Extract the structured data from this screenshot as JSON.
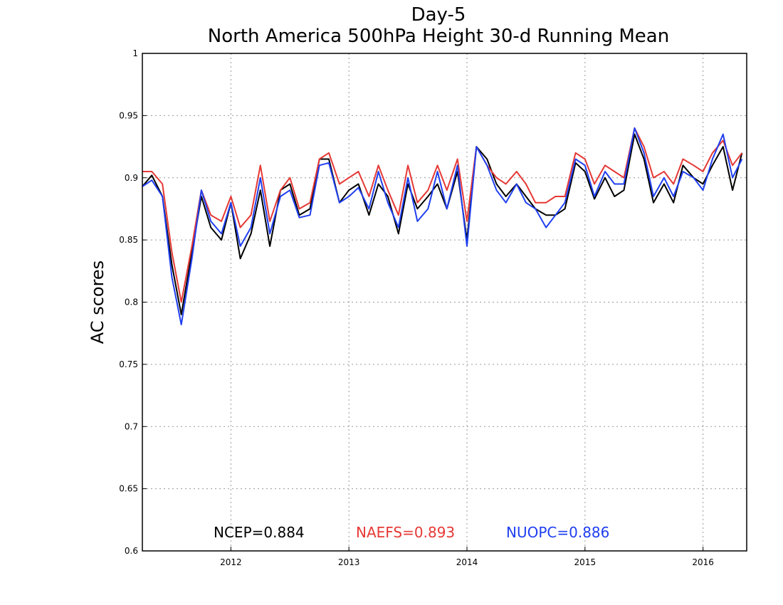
{
  "chart_data": {
    "type": "line",
    "title": "Day-5",
    "subtitle": "North America 500hPa Height 30-d Running Mean",
    "xlabel": "",
    "ylabel": "AC scores",
    "xlim": [
      2011.25,
      2016.37
    ],
    "ylim": [
      0.6,
      1.0
    ],
    "yticks": [
      0.6,
      0.65,
      0.7,
      0.75,
      0.8,
      0.85,
      0.9,
      0.95,
      1
    ],
    "ytick_labels": [
      "0.6",
      "0.65",
      "0.7",
      "0.75",
      "0.8",
      "0.85",
      "0.9",
      "0.95",
      "1"
    ],
    "xticks": [
      2012,
      2013,
      2014,
      2015,
      2016
    ],
    "xtick_labels": [
      "2012",
      "2013",
      "2014",
      "2015",
      "2016"
    ],
    "grid": true,
    "legend_position": "bottom",
    "legend": [
      "NCEP=0.884",
      "NAEFS=0.893",
      "NUOPC=0.886"
    ],
    "x": [
      2011.25,
      2011.33,
      2011.42,
      2011.5,
      2011.58,
      2011.67,
      2011.75,
      2011.83,
      2011.92,
      2012.0,
      2012.08,
      2012.17,
      2012.25,
      2012.33,
      2012.42,
      2012.5,
      2012.58,
      2012.67,
      2012.75,
      2012.83,
      2012.92,
      2013.0,
      2013.08,
      2013.17,
      2013.25,
      2013.33,
      2013.42,
      2013.5,
      2013.58,
      2013.67,
      2013.75,
      2013.83,
      2013.92,
      2014.0,
      2014.08,
      2014.17,
      2014.25,
      2014.33,
      2014.42,
      2014.5,
      2014.58,
      2014.67,
      2014.75,
      2014.83,
      2014.92,
      2015.0,
      2015.08,
      2015.17,
      2015.25,
      2015.33,
      2015.42,
      2015.5,
      2015.58,
      2015.67,
      2015.75,
      2015.83,
      2015.92,
      2016.0,
      2016.08,
      2016.17,
      2016.25,
      2016.33
    ],
    "series": [
      {
        "name": "NCEP",
        "color": "#000000",
        "values": [
          0.893,
          0.902,
          0.885,
          0.83,
          0.79,
          0.84,
          0.885,
          0.86,
          0.85,
          0.88,
          0.835,
          0.855,
          0.89,
          0.845,
          0.89,
          0.895,
          0.87,
          0.875,
          0.915,
          0.915,
          0.88,
          0.89,
          0.895,
          0.87,
          0.895,
          0.885,
          0.855,
          0.895,
          0.875,
          0.885,
          0.895,
          0.875,
          0.905,
          0.85,
          0.925,
          0.915,
          0.895,
          0.885,
          0.895,
          0.885,
          0.875,
          0.87,
          0.87,
          0.875,
          0.912,
          0.905,
          0.883,
          0.9,
          0.885,
          0.89,
          0.935,
          0.915,
          0.88,
          0.895,
          0.88,
          0.91,
          0.9,
          0.895,
          0.91,
          0.925,
          0.89,
          0.92
        ]
      },
      {
        "name": "NAEFS",
        "color": "#e53935",
        "values": [
          0.905,
          0.905,
          0.895,
          0.84,
          0.8,
          0.845,
          0.89,
          0.87,
          0.865,
          0.885,
          0.86,
          0.87,
          0.91,
          0.865,
          0.89,
          0.9,
          0.875,
          0.88,
          0.915,
          0.92,
          0.895,
          0.9,
          0.905,
          0.885,
          0.91,
          0.89,
          0.87,
          0.91,
          0.88,
          0.89,
          0.91,
          0.89,
          0.915,
          0.865,
          0.925,
          0.91,
          0.9,
          0.895,
          0.905,
          0.895,
          0.88,
          0.88,
          0.885,
          0.885,
          0.92,
          0.915,
          0.895,
          0.91,
          0.905,
          0.9,
          0.94,
          0.925,
          0.9,
          0.905,
          0.895,
          0.915,
          0.91,
          0.905,
          0.92,
          0.93,
          0.91,
          0.92
        ]
      },
      {
        "name": "NUOPC",
        "color": "#1f3ff0",
        "values": [
          0.893,
          0.898,
          0.885,
          0.82,
          0.782,
          0.835,
          0.89,
          0.865,
          0.855,
          0.88,
          0.845,
          0.86,
          0.9,
          0.855,
          0.885,
          0.89,
          0.868,
          0.87,
          0.91,
          0.912,
          0.88,
          0.885,
          0.892,
          0.875,
          0.905,
          0.88,
          0.86,
          0.9,
          0.865,
          0.875,
          0.905,
          0.875,
          0.91,
          0.845,
          0.925,
          0.91,
          0.89,
          0.88,
          0.895,
          0.88,
          0.875,
          0.86,
          0.87,
          0.88,
          0.915,
          0.91,
          0.885,
          0.905,
          0.895,
          0.895,
          0.94,
          0.92,
          0.885,
          0.9,
          0.885,
          0.905,
          0.9,
          0.89,
          0.915,
          0.935,
          0.9,
          0.915
        ]
      }
    ]
  }
}
